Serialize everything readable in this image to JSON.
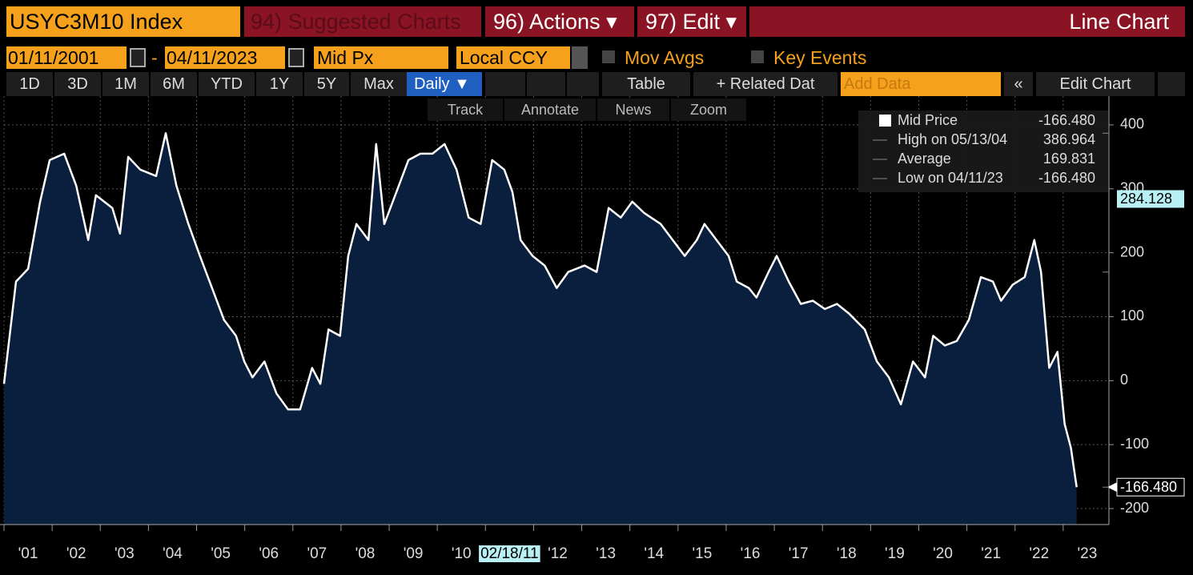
{
  "header": {
    "ticker": "USYC3M10 Index",
    "suggested": "94) Suggested Charts",
    "actions": "96) Actions ▾",
    "edit": "97) Edit ▾",
    "chart_kind": "Line Chart"
  },
  "controls": {
    "start_date": "01/11/2001",
    "dash": "-",
    "end_date": "04/11/2023",
    "price_field": "Mid Px",
    "currency": "Local CCY",
    "mov_avgs": "Mov Avgs",
    "key_events": "Key Events"
  },
  "toolbar": {
    "periods": [
      "1D",
      "3D",
      "1M",
      "6M",
      "YTD",
      "1Y",
      "5Y",
      "Max"
    ],
    "frequency": "Daily ▼",
    "table": "Table",
    "related": "+ Related Dat",
    "add_data": "Add Data",
    "collapse": "«",
    "edit_chart": "Edit Chart"
  },
  "tools": [
    "Track",
    "Annotate",
    "News",
    "Zoom"
  ],
  "chart_data": {
    "type": "line",
    "series": [
      {
        "name": "Mid Price",
        "color": "#ffffff",
        "fill": "#0a1f3d",
        "x": [
          2001.0,
          2001.25,
          2001.5,
          2001.75,
          2001.95,
          2002.25,
          2002.5,
          2002.75,
          2002.91,
          2003.25,
          2003.41,
          2003.58,
          2003.83,
          2004.16,
          2004.36,
          2004.58,
          2004.83,
          2005.07,
          2005.32,
          2005.57,
          2005.82,
          2005.99,
          2006.16,
          2006.41,
          2006.66,
          2006.9,
          2007.15,
          2007.4,
          2007.57,
          2007.74,
          2007.98,
          2008.15,
          2008.32,
          2008.57,
          2008.73,
          2008.9,
          2009.15,
          2009.4,
          2009.65,
          2009.9,
          2010.15,
          2010.4,
          2010.65,
          2010.9,
          2011.14,
          2011.39,
          2011.56,
          2011.73,
          2011.98,
          2012.23,
          2012.48,
          2012.72,
          2013.06,
          2013.31,
          2013.56,
          2013.81,
          2014.05,
          2014.3,
          2014.64,
          2014.89,
          2015.14,
          2015.39,
          2015.55,
          2015.8,
          2016.05,
          2016.22,
          2016.47,
          2016.63,
          2016.88,
          2017.05,
          2017.3,
          2017.55,
          2017.8,
          2018.05,
          2018.3,
          2018.55,
          2018.88,
          2019.13,
          2019.38,
          2019.63,
          2019.88,
          2020.13,
          2020.3,
          2020.54,
          2020.79,
          2021.04,
          2021.29,
          2021.54,
          2021.71,
          2021.95,
          2022.2,
          2022.4,
          2022.54,
          2022.71,
          2022.88,
          2023.03,
          2023.16,
          2023.28
        ],
        "values": [
          -5,
          155,
          175,
          280,
          345,
          355,
          305,
          220,
          290,
          270,
          230,
          350,
          330,
          320,
          386.964,
          305,
          245,
          195,
          145,
          95,
          70,
          30,
          5,
          30,
          -20,
          -45,
          -45,
          20,
          -5,
          80,
          70,
          195,
          245,
          220,
          370,
          245,
          295,
          345,
          355,
          355,
          370,
          330,
          255,
          245,
          345,
          330,
          295,
          220,
          195,
          180,
          145,
          170,
          180,
          170,
          270,
          255,
          280,
          262,
          245,
          220,
          195,
          220,
          245,
          220,
          195,
          155,
          145,
          130,
          170,
          195,
          155,
          120,
          125,
          112,
          120,
          105,
          80,
          30,
          5,
          -37,
          30,
          5,
          70,
          55,
          62,
          95,
          162,
          155,
          125,
          150,
          162,
          220,
          170,
          20,
          45,
          -68,
          -105,
          -166.48
        ]
      }
    ],
    "xlim": [
      2001,
      2023.95
    ],
    "ylim": [
      -225,
      445
    ],
    "xticks": [
      {
        "value": 2001,
        "label": "'01"
      },
      {
        "value": 2002,
        "label": "'02"
      },
      {
        "value": 2003,
        "label": "'03"
      },
      {
        "value": 2004,
        "label": "'04"
      },
      {
        "value": 2005,
        "label": "'05"
      },
      {
        "value": 2006,
        "label": "'06"
      },
      {
        "value": 2007,
        "label": "'07"
      },
      {
        "value": 2008,
        "label": "'08"
      },
      {
        "value": 2009,
        "label": "'09"
      },
      {
        "value": 2010,
        "label": "'10"
      },
      {
        "value": 2011,
        "label": "02/18/11"
      },
      {
        "value": 2012,
        "label": "'12"
      },
      {
        "value": 2013,
        "label": "'13"
      },
      {
        "value": 2014,
        "label": "'14"
      },
      {
        "value": 2015,
        "label": "'15"
      },
      {
        "value": 2016,
        "label": "'16"
      },
      {
        "value": 2017,
        "label": "'17"
      },
      {
        "value": 2018,
        "label": "'18"
      },
      {
        "value": 2019,
        "label": "'19"
      },
      {
        "value": 2020,
        "label": "'20"
      },
      {
        "value": 2021,
        "label": "'21"
      },
      {
        "value": 2022,
        "label": "'22"
      },
      {
        "value": 2023,
        "label": "'23"
      }
    ],
    "yticks": [
      400,
      300,
      200,
      100,
      0,
      -100,
      -200
    ],
    "grid": true,
    "stats": [
      {
        "label": "High on 05/13/04",
        "value": 386.964
      },
      {
        "label": "Average",
        "value": 169.831
      },
      {
        "label": "Low on 04/11/23",
        "value": -166.48,
        "value_label": "-166.480"
      }
    ],
    "last_value_label": "-166.480",
    "price_labels": [
      {
        "value": 284.128,
        "label": "284.128",
        "color": "#b8f0f4"
      },
      {
        "value": -166.48,
        "label": "-166.480",
        "color": "#ffffff"
      }
    ]
  }
}
